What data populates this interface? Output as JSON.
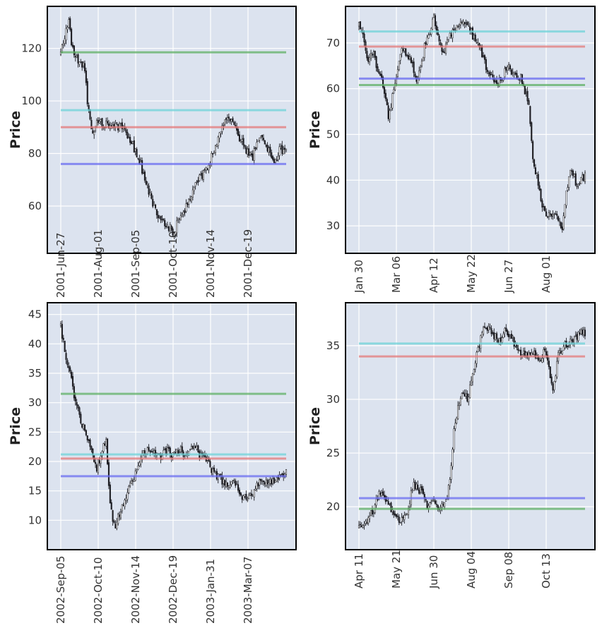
{
  "chart_data": [
    {
      "type": "candlestick",
      "ylabel": "Price",
      "ylim": [
        42,
        136
      ],
      "yticks": [
        60,
        80,
        100,
        120
      ],
      "xticks": [
        "2001-Jun-27",
        "2001-Aug-01",
        "2001-Sep-05",
        "2001-Oct-10",
        "2001-Nov-14",
        "2001-Dec-19"
      ],
      "grid": true,
      "price_path": [
        {
          "t": 0.0,
          "v": 118
        },
        {
          "t": 0.02,
          "v": 126
        },
        {
          "t": 0.035,
          "v": 130
        },
        {
          "t": 0.05,
          "v": 121
        },
        {
          "t": 0.07,
          "v": 116
        },
        {
          "t": 0.1,
          "v": 114
        },
        {
          "t": 0.11,
          "v": 112
        },
        {
          "t": 0.12,
          "v": 97
        },
        {
          "t": 0.14,
          "v": 87
        },
        {
          "t": 0.16,
          "v": 92
        },
        {
          "t": 0.19,
          "v": 91
        },
        {
          "t": 0.23,
          "v": 90
        },
        {
          "t": 0.27,
          "v": 90
        },
        {
          "t": 0.31,
          "v": 85
        },
        {
          "t": 0.35,
          "v": 77
        },
        {
          "t": 0.38,
          "v": 68
        },
        {
          "t": 0.41,
          "v": 60
        },
        {
          "t": 0.44,
          "v": 56
        },
        {
          "t": 0.47,
          "v": 53
        },
        {
          "t": 0.5,
          "v": 50
        },
        {
          "t": 0.53,
          "v": 56
        },
        {
          "t": 0.56,
          "v": 60
        },
        {
          "t": 0.59,
          "v": 67
        },
        {
          "t": 0.63,
          "v": 72
        },
        {
          "t": 0.66,
          "v": 77
        },
        {
          "t": 0.69,
          "v": 84
        },
        {
          "t": 0.72,
          "v": 90
        },
        {
          "t": 0.74,
          "v": 95
        },
        {
          "t": 0.76,
          "v": 92
        },
        {
          "t": 0.79,
          "v": 86
        },
        {
          "t": 0.82,
          "v": 82
        },
        {
          "t": 0.85,
          "v": 78
        },
        {
          "t": 0.87,
          "v": 84
        },
        {
          "t": 0.89,
          "v": 87
        },
        {
          "t": 0.91,
          "v": 82
        },
        {
          "t": 0.93,
          "v": 80
        },
        {
          "t": 0.95,
          "v": 77
        },
        {
          "t": 0.97,
          "v": 81
        },
        {
          "t": 1.0,
          "v": 81
        }
      ],
      "hlines": [
        {
          "value": 118.5,
          "color": "#5fb064"
        },
        {
          "value": 96.5,
          "color": "#6fd3d8"
        },
        {
          "value": 90.0,
          "color": "#e47a7a"
        },
        {
          "value": 76.0,
          "color": "#6a6cf0"
        }
      ]
    },
    {
      "type": "candlestick",
      "ylabel": "Price",
      "ylim": [
        24,
        78
      ],
      "yticks": [
        30,
        40,
        50,
        60,
        70
      ],
      "xticks": [
        "Jan 30",
        "Mar 06",
        "Apr 12",
        "May 22",
        "Jun 27",
        "Aug 01"
      ],
      "grid": true,
      "price_path": [
        {
          "t": 0.0,
          "v": 74
        },
        {
          "t": 0.02,
          "v": 71
        },
        {
          "t": 0.04,
          "v": 66
        },
        {
          "t": 0.06,
          "v": 68
        },
        {
          "t": 0.08,
          "v": 65
        },
        {
          "t": 0.1,
          "v": 62
        },
        {
          "t": 0.12,
          "v": 58
        },
        {
          "t": 0.13,
          "v": 53
        },
        {
          "t": 0.15,
          "v": 59
        },
        {
          "t": 0.17,
          "v": 64
        },
        {
          "t": 0.19,
          "v": 68
        },
        {
          "t": 0.21,
          "v": 68
        },
        {
          "t": 0.23,
          "v": 66
        },
        {
          "t": 0.25,
          "v": 62
        },
        {
          "t": 0.27,
          "v": 64
        },
        {
          "t": 0.29,
          "v": 69
        },
        {
          "t": 0.31,
          "v": 72
        },
        {
          "t": 0.33,
          "v": 76
        },
        {
          "t": 0.35,
          "v": 71
        },
        {
          "t": 0.37,
          "v": 67
        },
        {
          "t": 0.39,
          "v": 70
        },
        {
          "t": 0.42,
          "v": 73
        },
        {
          "t": 0.45,
          "v": 74
        },
        {
          "t": 0.48,
          "v": 74
        },
        {
          "t": 0.51,
          "v": 71
        },
        {
          "t": 0.54,
          "v": 68
        },
        {
          "t": 0.57,
          "v": 64
        },
        {
          "t": 0.6,
          "v": 61
        },
        {
          "t": 0.63,
          "v": 62
        },
        {
          "t": 0.66,
          "v": 65
        },
        {
          "t": 0.69,
          "v": 63
        },
        {
          "t": 0.72,
          "v": 62
        },
        {
          "t": 0.75,
          "v": 57
        },
        {
          "t": 0.77,
          "v": 44
        },
        {
          "t": 0.79,
          "v": 40
        },
        {
          "t": 0.81,
          "v": 35
        },
        {
          "t": 0.83,
          "v": 32
        },
        {
          "t": 0.86,
          "v": 33
        },
        {
          "t": 0.88,
          "v": 31
        },
        {
          "t": 0.9,
          "v": 29
        },
        {
          "t": 0.92,
          "v": 38
        },
        {
          "t": 0.94,
          "v": 43
        },
        {
          "t": 0.96,
          "v": 39
        },
        {
          "t": 0.98,
          "v": 40
        },
        {
          "t": 1.0,
          "v": 41
        }
      ],
      "hlines": [
        {
          "value": 72.5,
          "color": "#6fd3d8"
        },
        {
          "value": 69.2,
          "color": "#e47a7a"
        },
        {
          "value": 62.2,
          "color": "#6a6cf0"
        },
        {
          "value": 60.8,
          "color": "#5fb064"
        }
      ]
    },
    {
      "type": "candlestick",
      "ylabel": "Price",
      "ylim": [
        5,
        47
      ],
      "yticks": [
        10,
        15,
        20,
        25,
        30,
        35,
        40,
        45
      ],
      "xticks": [
        "2002-Sep-05",
        "2002-Oct-10",
        "2002-Nov-14",
        "2002-Dec-19",
        "2003-Jan-31",
        "2003-Mar-07"
      ],
      "grid": true,
      "price_path": [
        {
          "t": 0.0,
          "v": 43
        },
        {
          "t": 0.02,
          "v": 38
        },
        {
          "t": 0.04,
          "v": 35
        },
        {
          "t": 0.06,
          "v": 31
        },
        {
          "t": 0.08,
          "v": 28
        },
        {
          "t": 0.1,
          "v": 26
        },
        {
          "t": 0.12,
          "v": 24
        },
        {
          "t": 0.14,
          "v": 21
        },
        {
          "t": 0.16,
          "v": 19
        },
        {
          "t": 0.18,
          "v": 21
        },
        {
          "t": 0.2,
          "v": 24
        },
        {
          "t": 0.22,
          "v": 12
        },
        {
          "t": 0.24,
          "v": 9
        },
        {
          "t": 0.26,
          "v": 11
        },
        {
          "t": 0.28,
          "v": 13
        },
        {
          "t": 0.3,
          "v": 15
        },
        {
          "t": 0.32,
          "v": 17
        },
        {
          "t": 0.34,
          "v": 19
        },
        {
          "t": 0.36,
          "v": 21
        },
        {
          "t": 0.38,
          "v": 22
        },
        {
          "t": 0.41,
          "v": 22
        },
        {
          "t": 0.44,
          "v": 21
        },
        {
          "t": 0.47,
          "v": 22
        },
        {
          "t": 0.5,
          "v": 21
        },
        {
          "t": 0.53,
          "v": 22
        },
        {
          "t": 0.56,
          "v": 21
        },
        {
          "t": 0.59,
          "v": 23
        },
        {
          "t": 0.62,
          "v": 21
        },
        {
          "t": 0.65,
          "v": 20
        },
        {
          "t": 0.68,
          "v": 18
        },
        {
          "t": 0.71,
          "v": 17
        },
        {
          "t": 0.74,
          "v": 16
        },
        {
          "t": 0.77,
          "v": 17
        },
        {
          "t": 0.8,
          "v": 14
        },
        {
          "t": 0.83,
          "v": 14
        },
        {
          "t": 0.86,
          "v": 15
        },
        {
          "t": 0.89,
          "v": 17
        },
        {
          "t": 0.92,
          "v": 16
        },
        {
          "t": 0.95,
          "v": 17
        },
        {
          "t": 0.98,
          "v": 18
        },
        {
          "t": 1.0,
          "v": 18
        }
      ],
      "hlines": [
        {
          "value": 31.5,
          "color": "#5fb064"
        },
        {
          "value": 21.2,
          "color": "#6fd3d8"
        },
        {
          "value": 20.5,
          "color": "#e47a7a"
        },
        {
          "value": 17.5,
          "color": "#6a6cf0"
        }
      ]
    },
    {
      "type": "candlestick",
      "ylabel": "Price",
      "ylim": [
        16,
        39
      ],
      "yticks": [
        20,
        25,
        30,
        35
      ],
      "xticks": [
        "Apr 11",
        "May 21",
        "Jun 30",
        "Aug 04",
        "Sep 08",
        "Oct 13"
      ],
      "grid": true,
      "price_path": [
        {
          "t": 0.0,
          "v": 18
        },
        {
          "t": 0.03,
          "v": 18.7
        },
        {
          "t": 0.06,
          "v": 19.5
        },
        {
          "t": 0.09,
          "v": 21.2
        },
        {
          "t": 0.12,
          "v": 20.8
        },
        {
          "t": 0.15,
          "v": 19.3
        },
        {
          "t": 0.18,
          "v": 18.5
        },
        {
          "t": 0.21,
          "v": 19.2
        },
        {
          "t": 0.24,
          "v": 22.2
        },
        {
          "t": 0.27,
          "v": 21.5
        },
        {
          "t": 0.3,
          "v": 20.2
        },
        {
          "t": 0.33,
          "v": 20.6
        },
        {
          "t": 0.36,
          "v": 19.8
        },
        {
          "t": 0.38,
          "v": 20.2
        },
        {
          "t": 0.4,
          "v": 22
        },
        {
          "t": 0.42,
          "v": 27
        },
        {
          "t": 0.44,
          "v": 29.5
        },
        {
          "t": 0.46,
          "v": 30.5
        },
        {
          "t": 0.48,
          "v": 30
        },
        {
          "t": 0.5,
          "v": 32
        },
        {
          "t": 0.53,
          "v": 35
        },
        {
          "t": 0.56,
          "v": 37
        },
        {
          "t": 0.59,
          "v": 36
        },
        {
          "t": 0.62,
          "v": 35.5
        },
        {
          "t": 0.65,
          "v": 36.5
        },
        {
          "t": 0.68,
          "v": 35.5
        },
        {
          "t": 0.71,
          "v": 34.5
        },
        {
          "t": 0.74,
          "v": 34
        },
        {
          "t": 0.77,
          "v": 34.5
        },
        {
          "t": 0.8,
          "v": 33.5
        },
        {
          "t": 0.82,
          "v": 34.5
        },
        {
          "t": 0.84,
          "v": 33
        },
        {
          "t": 0.86,
          "v": 31
        },
        {
          "t": 0.88,
          "v": 34
        },
        {
          "t": 0.91,
          "v": 35
        },
        {
          "t": 0.94,
          "v": 35.5
        },
        {
          "t": 0.97,
          "v": 36
        },
        {
          "t": 1.0,
          "v": 36.3
        }
      ],
      "hlines": [
        {
          "value": 35.2,
          "color": "#6fd3d8"
        },
        {
          "value": 34.0,
          "color": "#e47a7a"
        },
        {
          "value": 20.8,
          "color": "#6a6cf0"
        },
        {
          "value": 19.8,
          "color": "#5fb064"
        }
      ]
    }
  ]
}
